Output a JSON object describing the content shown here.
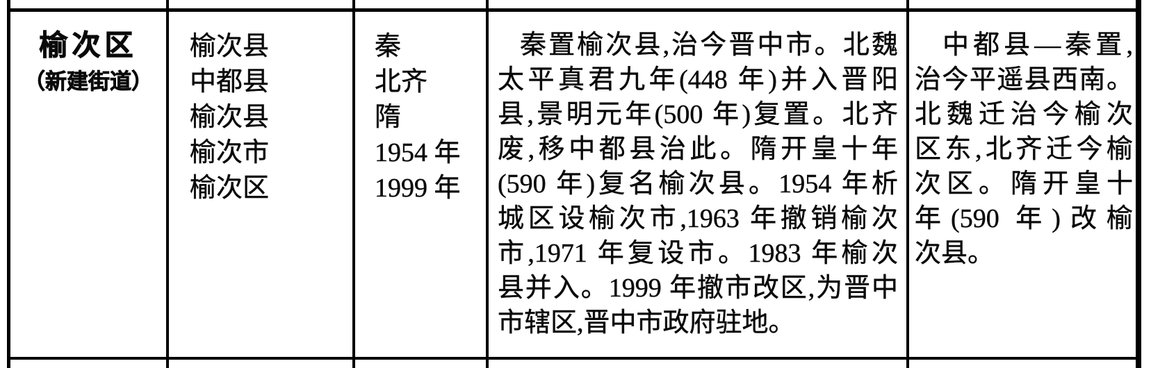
{
  "table": {
    "region": {
      "name": "榆次区",
      "subname": "（新建街道）"
    },
    "historical_names": [
      "榆次县",
      "中都县",
      "榆次县",
      "榆次市",
      "榆次区"
    ],
    "eras": [
      "秦",
      "北齐",
      "隋",
      "1954 年",
      "1999 年"
    ],
    "evolution_lines": [
      "秦置榆次县,治今晋中市。北魏",
      "太平真君九年(448 年)并入晋阳",
      "县,景明元年(500 年)复置。北齐",
      "废,移中都县治此。隋开皇十年",
      "(590 年)复名榆次县。1954 年析",
      "城区设榆次市,1963 年撤销榆次",
      "市,1971 年复设市。1983 年榆次",
      "县并入。1999 年撤市改区,为晋中",
      "市辖区,晋中市政府驻地。"
    ],
    "evolution_full_text": "秦置榆次县,治今晋中市。北魏太平真君九年(448 年)并入晋阳县,景明元年(500 年)复置。北齐废,移中都县治此。隋开皇十年(590 年)复名榆次县。1954 年析城区设榆次市,1963 年撤销榆次市,1971 年复设市。1983 年榆次县并入。1999 年撤市改区,为晋中市辖区,晋中市政府驻地。",
    "note_lines": [
      "中都县—秦置,",
      "治今平遥县西南。",
      "北魏迁治今榆次",
      "区东,北齐迁今榆",
      "次区。隋开皇十",
      "年(590 年)改榆",
      "次县。"
    ],
    "note_full_text": "中都县—秦置,治今平遥县西南。北魏迁治今榆次区东,北齐迁今榆次区。隋开皇十年(590 年)改榆次县。"
  },
  "colors": {
    "ink": "#0a0a0a",
    "paper": "#ffffff",
    "border": "#000000"
  }
}
